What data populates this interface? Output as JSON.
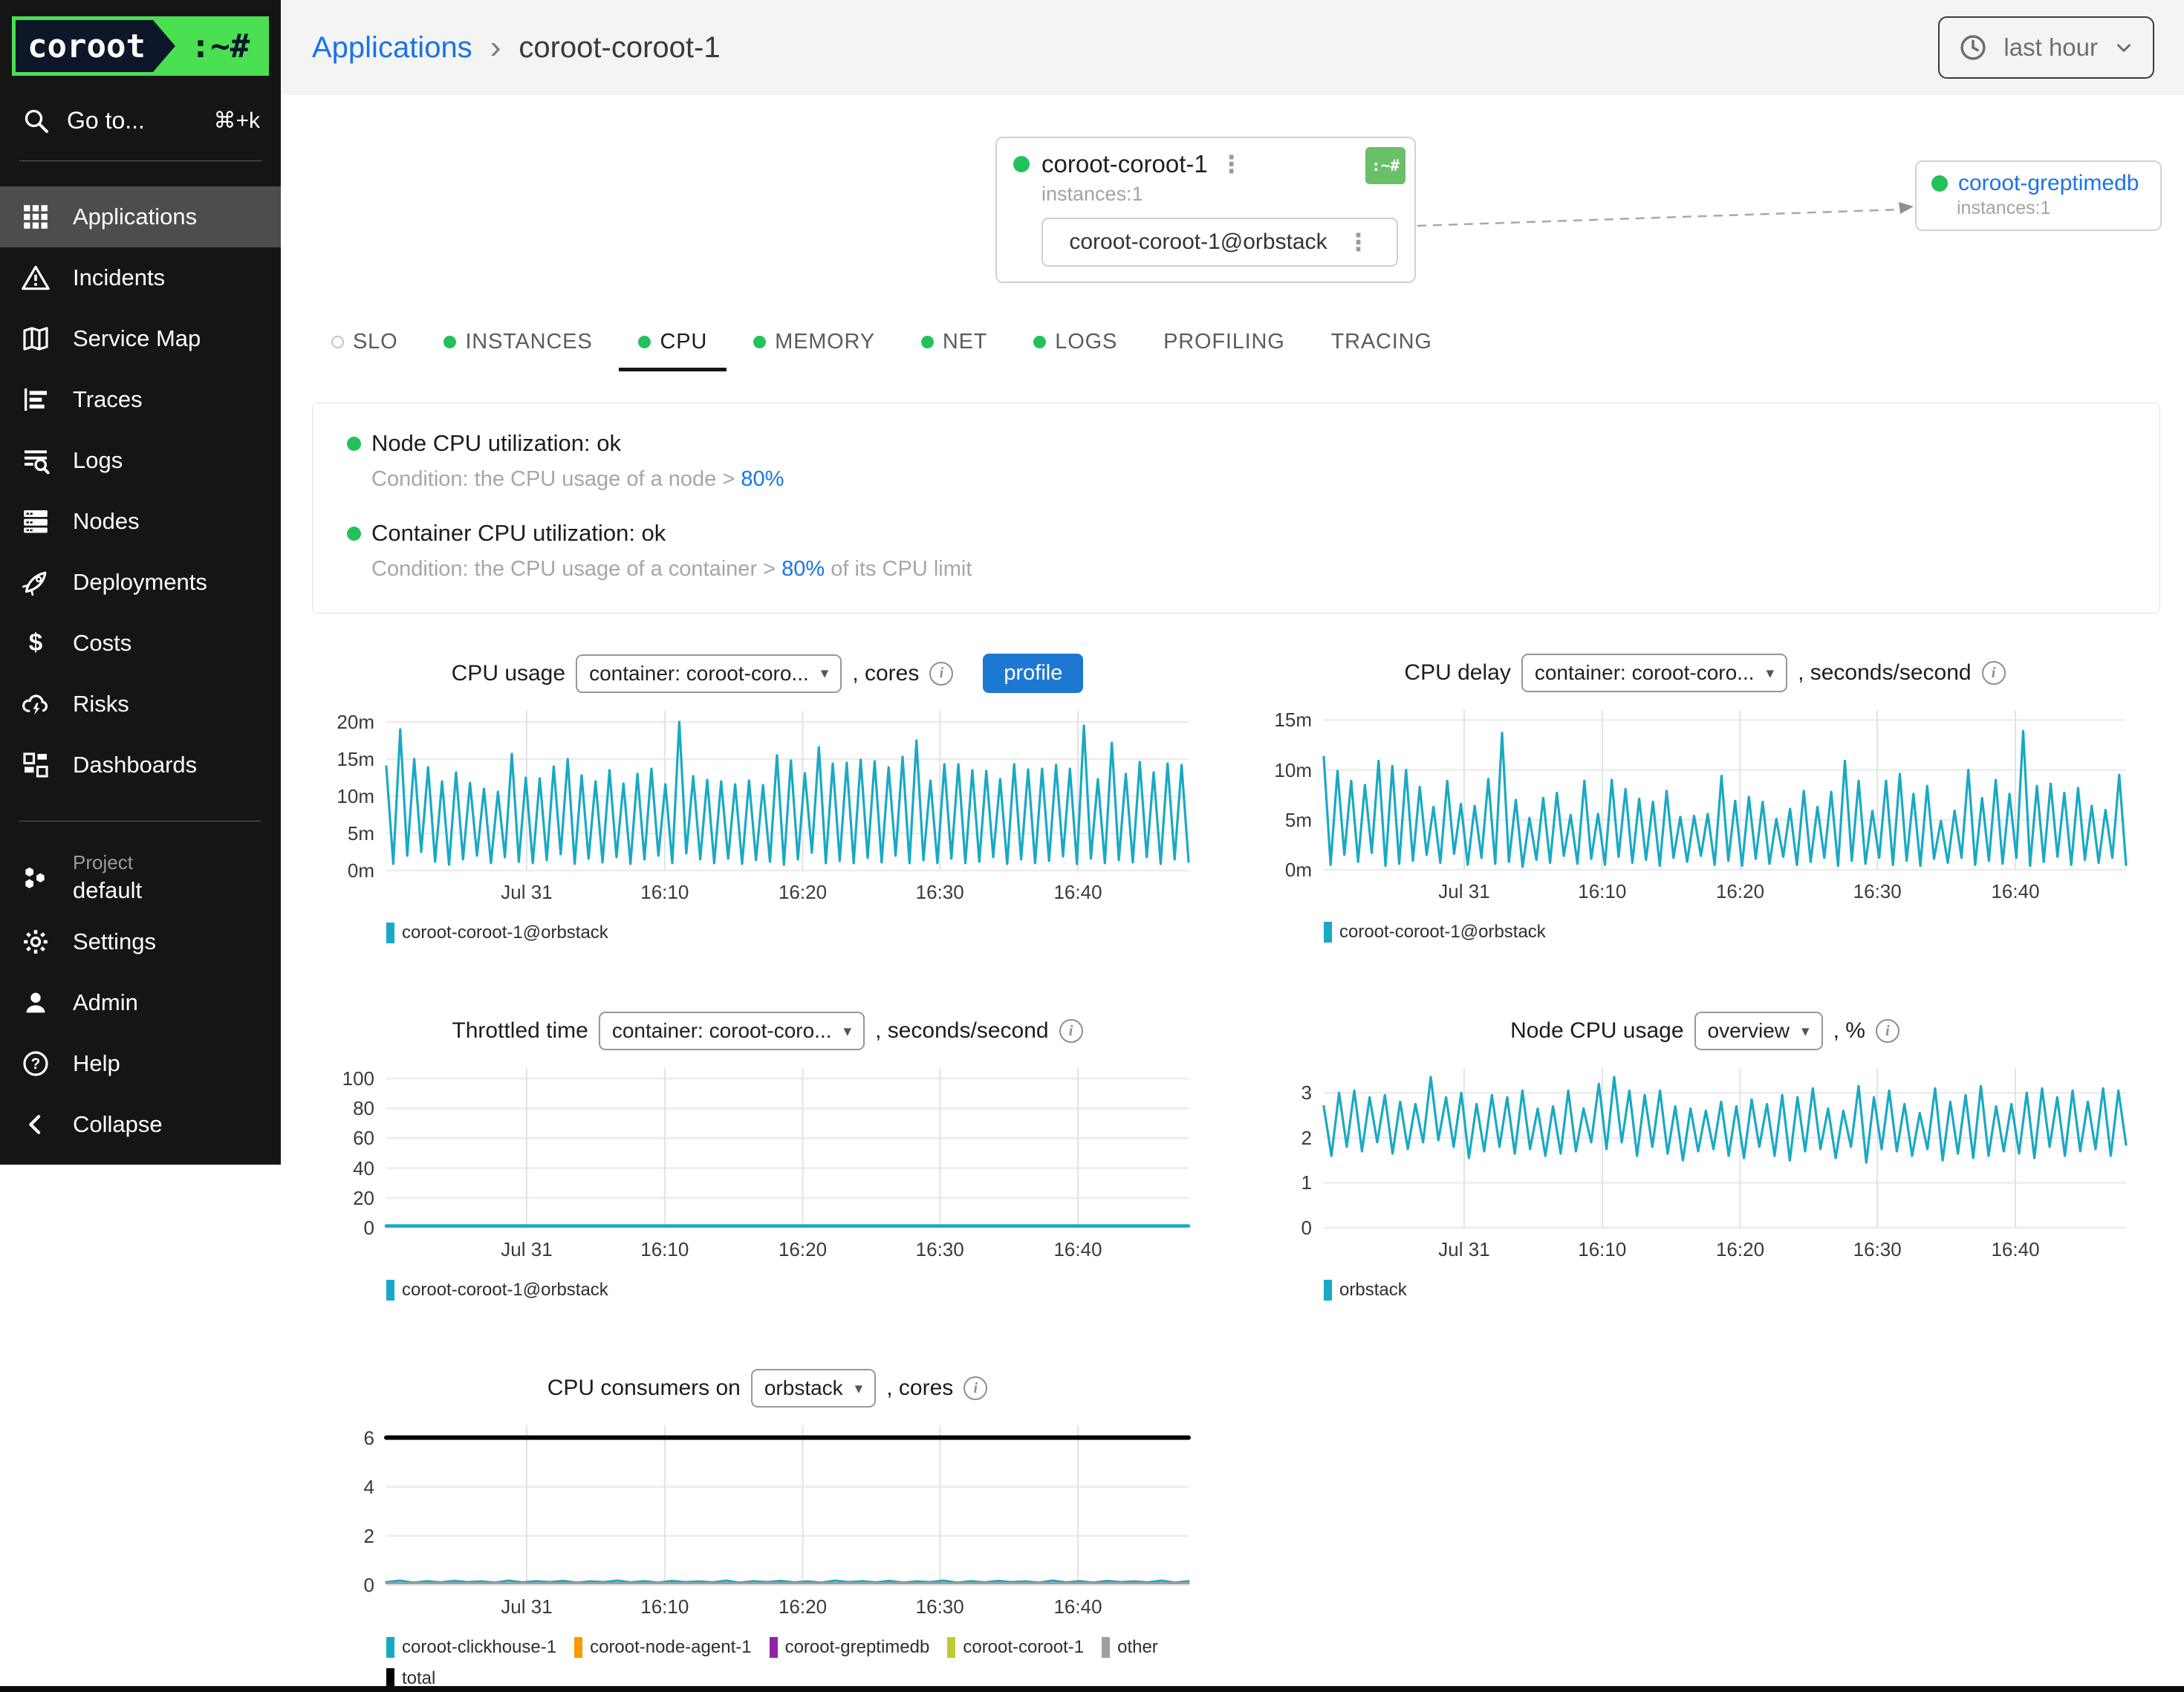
{
  "sidebar": {
    "logo_text": "coroot",
    "logo_suffix": ":~#",
    "goto_label": "Go to...",
    "goto_shortcut": "⌘+k",
    "items": [
      {
        "label": "Applications",
        "icon": "apps-grid-icon",
        "active": true
      },
      {
        "label": "Incidents",
        "icon": "alert-triangle-icon"
      },
      {
        "label": "Service Map",
        "icon": "map-icon"
      },
      {
        "label": "Traces",
        "icon": "traces-icon"
      },
      {
        "label": "Logs",
        "icon": "logs-search-icon"
      },
      {
        "label": "Nodes",
        "icon": "server-icon"
      },
      {
        "label": "Deployments",
        "icon": "rocket-icon"
      },
      {
        "label": "Costs",
        "icon": "dollar-icon"
      },
      {
        "label": "Risks",
        "icon": "cloud-bolt-icon"
      },
      {
        "label": "Dashboards",
        "icon": "dashboard-icon"
      }
    ],
    "project_label": "Project",
    "project_name": "default",
    "project_icon": "hexagons-icon",
    "footer_items": [
      {
        "label": "Settings",
        "icon": "gear-icon"
      },
      {
        "label": "Admin",
        "icon": "person-icon"
      },
      {
        "label": "Help",
        "icon": "help-circle-icon"
      },
      {
        "label": "Collapse",
        "icon": "chevron-left-icon"
      }
    ]
  },
  "header": {
    "breadcrumb_parent": "Applications",
    "breadcrumb_current": "coroot-coroot-1",
    "time_range": "last hour"
  },
  "service_map": {
    "app": {
      "name": "coroot-coroot-1",
      "instances_label": "instances:1",
      "badge": ":~#",
      "instance": "coroot-coroot-1@orbstack"
    },
    "upstream": {
      "name": "coroot-greptimedb",
      "instances_label": "instances:1"
    }
  },
  "tabs": [
    {
      "label": "SLO",
      "dot": "hollow"
    },
    {
      "label": "INSTANCES",
      "dot": "green"
    },
    {
      "label": "CPU",
      "dot": "green",
      "active": true
    },
    {
      "label": "MEMORY",
      "dot": "green"
    },
    {
      "label": "NET",
      "dot": "green"
    },
    {
      "label": "LOGS",
      "dot": "green"
    },
    {
      "label": "PROFILING",
      "dot": "none"
    },
    {
      "label": "TRACING",
      "dot": "none"
    }
  ],
  "checks": [
    {
      "name": "Node CPU utilization: ok",
      "condition_prefix": "Condition: the CPU usage of a node > ",
      "threshold": "80%",
      "condition_suffix": ""
    },
    {
      "name": "Container CPU utilization: ok",
      "condition_prefix": "Condition: the CPU usage of a container > ",
      "threshold": "80%",
      "condition_suffix": " of its CPU limit"
    }
  ],
  "colors": {
    "accent_blue": "#1a73e8",
    "green": "#23c15b",
    "teal": "#19a9c4",
    "orange": "#ff9800",
    "purple": "#8e24aa",
    "lime": "#c0ca33",
    "gray": "#9e9e9e",
    "black": "#000000"
  },
  "chart_data": [
    {
      "id": "cpu-usage",
      "type": "line",
      "title": "CPU usage",
      "selector": "container: coroot-coro...",
      "unit": ", cores",
      "profile_button": "profile",
      "x_ticks": [
        "Jul 31",
        "16:10",
        "16:20",
        "16:30",
        "16:40"
      ],
      "y_ticks": [
        [
          0,
          "0m"
        ],
        [
          5,
          "5m"
        ],
        [
          10,
          "10m"
        ],
        [
          15,
          "15m"
        ],
        [
          20,
          "20m"
        ]
      ],
      "ylim": [
        0,
        21.5
      ],
      "series": [
        {
          "name": "coroot-coroot-1@orbstack",
          "color": "#19a9c4",
          "width": 3.2,
          "values": [
            14,
            0.9,
            19,
            2,
            15,
            2.5,
            13.9,
            1.2,
            12,
            0.8,
            13.2,
            1.5,
            11.8,
            2,
            11,
            1,
            10.6,
            1.8,
            15.7,
            1.2,
            12.5,
            1,
            12.4,
            1.4,
            14,
            2.2,
            15,
            0.9,
            12.8,
            1.6,
            12,
            1.1,
            13.5,
            1.8,
            11.7,
            0.9,
            13,
            1.5,
            13.7,
            2,
            11.6,
            1,
            20,
            2.3,
            12.7,
            1.5,
            12.2,
            1,
            12,
            1.6,
            11.6,
            0.9,
            12.1,
            1.4,
            11.5,
            1.2,
            15.5,
            0.8,
            14.8,
            1.5,
            13.1,
            2.4,
            16.6,
            1,
            14.4,
            1.3,
            14.5,
            1,
            14.9,
            1.7,
            14.7,
            1.1,
            13.9,
            2,
            15.3,
            1,
            17.5,
            1.4,
            12.1,
            1,
            14.3,
            1.6,
            14.3,
            1,
            13.5,
            1.2,
            13.4,
            1.8,
            12.3,
            0.9,
            14.3,
            1.5,
            13.6,
            1,
            13.7,
            1.3,
            14.2,
            1.9,
            13.7,
            0.9,
            19.5,
            1.6,
            12.3,
            1,
            17.2,
            1.4,
            13,
            1.1,
            14.6,
            1.8,
            13.2,
            0.9,
            14.4,
            1.5,
            14.2,
            1.2
          ]
        }
      ],
      "legend": [
        {
          "label": "coroot-coroot-1@orbstack",
          "color": "#19a9c4"
        }
      ]
    },
    {
      "id": "cpu-delay",
      "type": "line",
      "title": "CPU delay",
      "selector": "container: coroot-coro...",
      "unit": ", seconds/second",
      "x_ticks": [
        "Jul 31",
        "16:10",
        "16:20",
        "16:30",
        "16:40"
      ],
      "y_ticks": [
        [
          0,
          "0m"
        ],
        [
          5,
          "5m"
        ],
        [
          10,
          "10m"
        ],
        [
          15,
          "15m"
        ]
      ],
      "ylim": [
        0,
        16
      ],
      "series": [
        {
          "name": "coroot-coroot-1@orbstack",
          "color": "#19a9c4",
          "width": 3.2,
          "values": [
            11.3,
            0.5,
            9.9,
            1.5,
            8.9,
            0.8,
            8.5,
            1.7,
            10.9,
            0.4,
            10.4,
            0.6,
            10,
            0.9,
            8.3,
            1.5,
            6.3,
            0.7,
            8.9,
            1.6,
            6.6,
            0.5,
            6.4,
            1.2,
            9.1,
            0.6,
            13.7,
            0.8,
            7,
            0.3,
            5.2,
            1,
            7.2,
            0.7,
            7.7,
            1.4,
            5.5,
            0.6,
            8.9,
            1.1,
            5.6,
            0.5,
            9,
            1.3,
            8.1,
            0.7,
            7.1,
            1,
            6.8,
            0.4,
            7.9,
            1.2,
            5.3,
            0.8,
            5.4,
            1.4,
            5.6,
            0.5,
            9.4,
            0.9,
            6.9,
            0.4,
            7.3,
            1.1,
            6.8,
            0.6,
            5.1,
            1.3,
            6.1,
            0.5,
            7.9,
            0.8,
            6.3,
            1.2,
            7.8,
            0.4,
            10.9,
            0.9,
            8.9,
            0.6,
            5.9,
            1.2,
            8.9,
            0.5,
            9.6,
            0.9,
            7.6,
            0.4,
            8.4,
            1.1,
            4.9,
            0.7,
            5.9,
            1.2,
            10,
            0.5,
            7.2,
            0.9,
            9,
            0.6,
            7.6,
            1.2,
            13.9,
            0.4,
            8.4,
            0.8,
            8.6,
            1.3,
            7.7,
            0.5,
            8.2,
            1,
            6.4,
            0.7,
            6,
            1.2,
            9.5,
            0.5
          ]
        }
      ],
      "legend": [
        {
          "label": "coroot-coroot-1@orbstack",
          "color": "#19a9c4"
        }
      ]
    },
    {
      "id": "throttled-time",
      "type": "line",
      "title": "Throttled time",
      "selector": "container: coroot-coro...",
      "unit": ", seconds/second",
      "x_ticks": [
        "Jul 31",
        "16:10",
        "16:20",
        "16:30",
        "16:40"
      ],
      "y_ticks": [
        [
          0,
          "0"
        ],
        [
          20,
          "20"
        ],
        [
          40,
          "40"
        ],
        [
          60,
          "60"
        ],
        [
          80,
          "80"
        ],
        [
          100,
          "100"
        ]
      ],
      "ylim": [
        0,
        107
      ],
      "series": [
        {
          "name": "coroot-coroot-1@orbstack",
          "color": "#19a9c4",
          "width": 4.5,
          "values": [
            0,
            0
          ]
        }
      ],
      "legend": [
        {
          "label": "coroot-coroot-1@orbstack",
          "color": "#19a9c4"
        }
      ]
    },
    {
      "id": "node-cpu-usage",
      "type": "line",
      "title": "Node CPU usage",
      "selector": "overview",
      "unit": ", %",
      "x_ticks": [
        "Jul 31",
        "16:10",
        "16:20",
        "16:30",
        "16:40"
      ],
      "y_ticks": [
        [
          0,
          "0"
        ],
        [
          1,
          "1"
        ],
        [
          2,
          "2"
        ],
        [
          3,
          "3"
        ]
      ],
      "ylim": [
        0,
        3.55
      ],
      "series": [
        {
          "name": "orbstack",
          "color": "#19a9c4",
          "width": 3.2,
          "values": [
            2.7,
            1.6,
            3,
            1.8,
            3.05,
            1.7,
            2.9,
            1.9,
            2.95,
            1.65,
            2.8,
            1.75,
            2.75,
            1.9,
            3.35,
            1.95,
            2.9,
            1.8,
            3,
            1.55,
            2.75,
            1.7,
            2.95,
            1.8,
            2.9,
            1.65,
            3.05,
            1.75,
            2.65,
            1.6,
            2.7,
            1.65,
            3.05,
            1.7,
            2.65,
            1.9,
            3.2,
            1.75,
            3.35,
            1.9,
            3.05,
            1.6,
            2.95,
            1.8,
            3.05,
            1.65,
            2.7,
            1.5,
            2.65,
            1.7,
            2.6,
            1.75,
            2.8,
            1.6,
            2.7,
            1.55,
            2.85,
            1.8,
            2.75,
            1.6,
            2.95,
            1.5,
            2.9,
            1.7,
            3.1,
            1.75,
            2.65,
            1.55,
            2.6,
            1.8,
            3.15,
            1.45,
            2.9,
            1.75,
            3.05,
            1.7,
            2.75,
            1.6,
            2.55,
            1.75,
            3.1,
            1.5,
            2.8,
            1.65,
            2.95,
            1.55,
            3.15,
            1.6,
            2.7,
            1.7,
            2.75,
            1.65,
            3,
            1.55,
            3.1,
            1.8,
            2.9,
            1.6,
            3.05,
            1.7,
            2.8,
            1.75,
            3.1,
            1.6,
            3.05,
            1.85
          ]
        }
      ],
      "legend": [
        {
          "label": "orbstack",
          "color": "#19a9c4"
        }
      ]
    },
    {
      "id": "cpu-consumers",
      "type": "line",
      "title": "CPU consumers on",
      "selector": "orbstack",
      "unit": ", cores",
      "x_ticks": [
        "Jul 31",
        "16:10",
        "16:20",
        "16:30",
        "16:40"
      ],
      "y_ticks": [
        [
          0,
          "0"
        ],
        [
          2,
          "2"
        ],
        [
          4,
          "4"
        ],
        [
          6,
          "6"
        ]
      ],
      "ylim": [
        0,
        6.5
      ],
      "series": [
        {
          "name": "coroot-clickhouse-1",
          "color": "#19a9c4",
          "width": 3,
          "values": [
            0.12,
            0.18,
            0.1,
            0.16,
            0.11,
            0.17,
            0.12,
            0.15,
            0.1,
            0.18,
            0.11,
            0.16,
            0.12,
            0.17,
            0.1,
            0.15,
            0.12,
            0.18,
            0.11,
            0.16,
            0.1,
            0.17,
            0.12,
            0.15,
            0.11,
            0.18,
            0.1,
            0.16,
            0.12,
            0.17,
            0.11,
            0.15,
            0.1,
            0.18,
            0.12,
            0.16,
            0.11,
            0.17,
            0.1,
            0.15,
            0.12,
            0.18,
            0.1,
            0.16,
            0.11,
            0.17,
            0.12,
            0.15,
            0.1,
            0.18,
            0.11,
            0.16,
            0.1,
            0.17,
            0.12,
            0.15,
            0.11,
            0.18,
            0.1,
            0.16
          ]
        },
        {
          "name": "coroot-node-agent-1",
          "color": "#ff9800",
          "width": 3,
          "values": [
            0.05,
            0.07,
            0.05,
            0.06,
            0.05,
            0.07,
            0.05,
            0.06,
            0.05,
            0.07,
            0.05,
            0.06,
            0.05,
            0.07,
            0.05,
            0.06,
            0.05,
            0.07,
            0.05,
            0.06
          ]
        },
        {
          "name": "coroot-greptimedb",
          "color": "#8e24aa",
          "width": 3,
          "values": [
            0.03,
            0.03
          ]
        },
        {
          "name": "coroot-coroot-1",
          "color": "#c0ca33",
          "width": 3,
          "values": [
            0.02,
            0.02
          ]
        },
        {
          "name": "other",
          "color": "#9e9e9e",
          "width": 3,
          "values": [
            0.01,
            0.01
          ]
        },
        {
          "name": "total",
          "color": "#000000",
          "width": 6,
          "values": [
            6,
            6
          ]
        }
      ],
      "legend": [
        {
          "label": "coroot-clickhouse-1",
          "color": "#19a9c4"
        },
        {
          "label": "coroot-node-agent-1",
          "color": "#ff9800"
        },
        {
          "label": "coroot-greptimedb",
          "color": "#8e24aa"
        },
        {
          "label": "coroot-coroot-1",
          "color": "#c0ca33"
        },
        {
          "label": "other",
          "color": "#9e9e9e"
        },
        {
          "label": "total",
          "color": "#000000"
        }
      ]
    }
  ]
}
